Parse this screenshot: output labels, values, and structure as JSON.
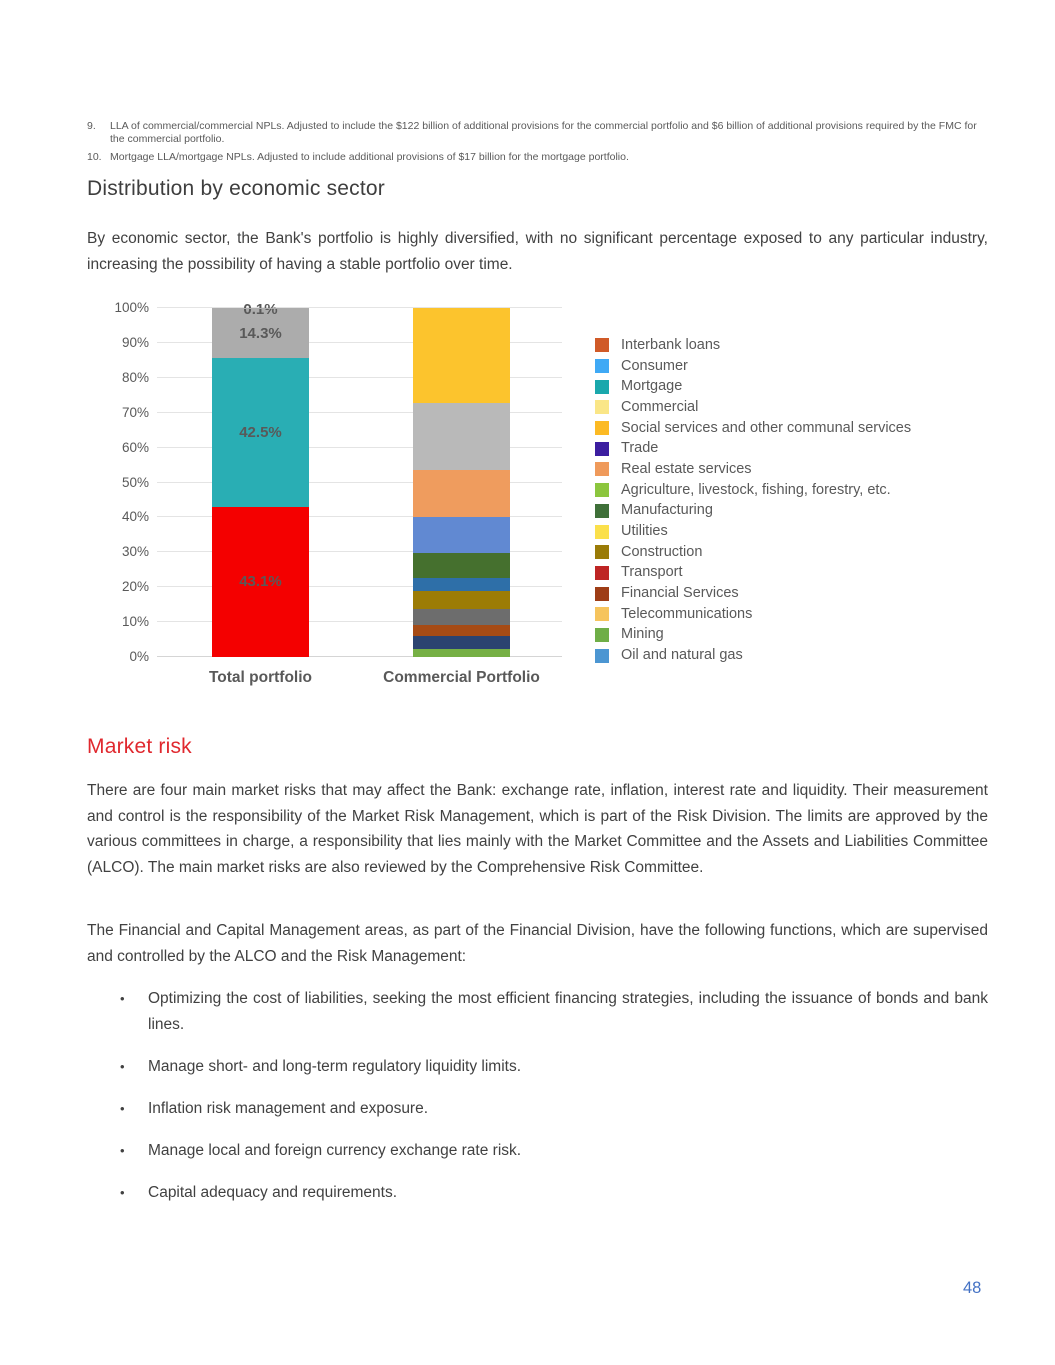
{
  "page": {
    "number": "48"
  },
  "footnotes": [
    {
      "num": "9.",
      "text": "LLA of commercial/commercial NPLs. Adjusted to include the $122 billion of additional provisions for the commercial portfolio and $6 billion of additional provisions required by the FMC for the commercial portfolio."
    },
    {
      "num": "10.",
      "text": "Mortgage LLA/mortgage NPLs. Adjusted to include additional provisions of $17 billion for the mortgage portfolio."
    }
  ],
  "section1": {
    "heading": "Distribution by economic sector",
    "paragraph": "By economic sector, the Bank's portfolio is highly diversified, with no significant percentage exposed to any particular industry, increasing the possibility of having a stable portfolio over time."
  },
  "chart_data": {
    "type": "bar",
    "subtype": "stacked-100-percent",
    "title": "",
    "xlabel": "",
    "ylabel": "",
    "ylim": [
      0,
      100
    ],
    "grid": true,
    "legend_position": "right",
    "categories": [
      "Total portfolio",
      "Commercial Portfolio"
    ],
    "y_ticks": [
      "0%",
      "10%",
      "20%",
      "30%",
      "40%",
      "50%",
      "60%",
      "70%",
      "80%",
      "90%",
      "100%"
    ],
    "bars": [
      {
        "category": "Total portfolio",
        "segments": [
          {
            "name": "Commercial",
            "value": 43.1,
            "color": "#f40000",
            "label": "43.1%"
          },
          {
            "name": "Mortgage",
            "value": 42.5,
            "color": "#29aeb4",
            "label": "42.5%"
          },
          {
            "name": "Consumer",
            "value": 14.3,
            "color": "#acacac",
            "label": "14.3%"
          },
          {
            "name": "Interbank loans",
            "value": 0.1,
            "color": "#acacac",
            "label": "0.1%",
            "label_position": "top"
          }
        ]
      },
      {
        "category": "Commercial Portfolio",
        "segments": [
          {
            "name": "Mining",
            "value": 2.4,
            "color": "#76b045"
          },
          {
            "name": "Telecommunications",
            "value": 3.5,
            "color": "#2b4370"
          },
          {
            "name": "Financial Services",
            "value": 3.2,
            "color": "#a64b15"
          },
          {
            "name": "Transport",
            "value": 4.8,
            "color": "#6d6d6d"
          },
          {
            "name": "Construction",
            "value": 5.1,
            "color": "#9c7c06"
          },
          {
            "name": "Utilities",
            "value": 3.6,
            "color": "#2e6fa8"
          },
          {
            "name": "Manufacturing",
            "value": 7.1,
            "color": "#45702e"
          },
          {
            "name": "Agriculture, livestock, fishing, forestry, etc.",
            "value": 10.4,
            "color": "#6189d2"
          },
          {
            "name": "Real estate services",
            "value": 13.4,
            "color": "#ef9c5e"
          },
          {
            "name": "Trade",
            "value": 19.3,
            "color": "#b9b9b9"
          },
          {
            "name": "Social services and other communal services",
            "value": 27.2,
            "color": "#fcc42d"
          }
        ]
      }
    ],
    "legend": [
      {
        "label": "Interbank loans",
        "color": "#d05a28"
      },
      {
        "label": "Consumer",
        "color": "#3fa9f5"
      },
      {
        "label": "Mortgage",
        "color": "#1aa8ac"
      },
      {
        "label": "Commercial",
        "color": "#fae687"
      },
      {
        "label": "Social services and other communal services",
        "color": "#fcba24"
      },
      {
        "label": "Trade",
        "color": "#3c1ea0"
      },
      {
        "label": "Real estate services",
        "color": "#ef9a5b"
      },
      {
        "label": "Agriculture, livestock, fishing, forestry, etc.",
        "color": "#8cc63e"
      },
      {
        "label": "Manufacturing",
        "color": "#3f7039"
      },
      {
        "label": "Utilities",
        "color": "#fbe04b"
      },
      {
        "label": "Construction",
        "color": "#9a7b07"
      },
      {
        "label": "Transport",
        "color": "#be2524"
      },
      {
        "label": "Financial Services",
        "color": "#9e3d16"
      },
      {
        "label": "Telecommunications",
        "color": "#f6c45d"
      },
      {
        "label": "Mining",
        "color": "#6fae47"
      },
      {
        "label": "Oil and natural gas",
        "color": "#4c96d2"
      }
    ],
    "colors": {
      "grid": "#e4e4e4",
      "axis_text": "#595959",
      "data_label": "#595959"
    }
  },
  "section2": {
    "heading": "Market risk",
    "paragraphs": [
      "There are four main market risks that may affect the Bank: exchange rate, inflation, interest rate and liquidity. Their measurement and control is the responsibility of the Market Risk Management, which is part of the Risk Division. The limits are approved by the various committees in charge, a responsibility that lies mainly with the Market Committee and the Assets and Liabilities Committee (ALCO). The main market risks are also reviewed by the Comprehensive Risk Committee.",
      "The Financial and Capital Management areas, as part of the Financial Division, have the following functions, which are supervised and controlled by the ALCO and the Risk Management:"
    ],
    "bullets": [
      "Optimizing the cost of liabilities, seeking the most efficient financing strategies, including the issuance of bonds and bank lines.",
      "Manage short- and long-term regulatory liquidity limits.",
      "Inflation risk management and exposure.",
      "Manage local and foreign currency exchange rate risk.",
      "Capital adequacy and requirements."
    ]
  }
}
